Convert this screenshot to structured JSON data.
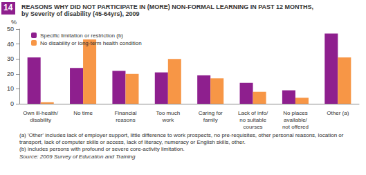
{
  "chart_data": {
    "type": "bar",
    "figure": "14",
    "title": "REASONS WHY DID NOT PARTICIPATE IN (MORE) NON-FORMAL LEARNING IN PAST 12 MONTHS,",
    "subtitle": "by Severity of disability (45-64yrs), 2009",
    "y_label": "%",
    "categories": [
      "Own ill-health/\ndisability",
      "No time",
      "Financial\nreasons",
      "Too much\nwork",
      "Caring for\nfamily",
      "Lack of info/\nno suitable\ncourses",
      "No places\navailable/\nnot offered",
      "Other (a)"
    ],
    "series": [
      {
        "name": "Specific limitation or restriction (b)",
        "color": "#8e1f8e",
        "values": [
          31,
          24,
          22,
          21,
          19,
          14,
          9,
          47
        ]
      },
      {
        "name": "No disability or long-term health condition",
        "color": "#f79646",
        "values": [
          1,
          43,
          20,
          30,
          17,
          8,
          4,
          31
        ]
      }
    ],
    "ylim": [
      0,
      50
    ],
    "yticks": [
      0,
      10,
      20,
      30,
      40,
      50
    ],
    "grid": false,
    "legend": "top-left",
    "annotations": [
      "(a) 'Other' includes lack of employer support, little difference to work prospects, no pre-requisites, other personal reasons, location or transport, lack of computer skills or access, lack of literacy, numeracy or English skills, other.",
      "(b) includes persons with profound or severe core-activity limitation.",
      "Source: 2009 Survey of Education and Training"
    ]
  }
}
